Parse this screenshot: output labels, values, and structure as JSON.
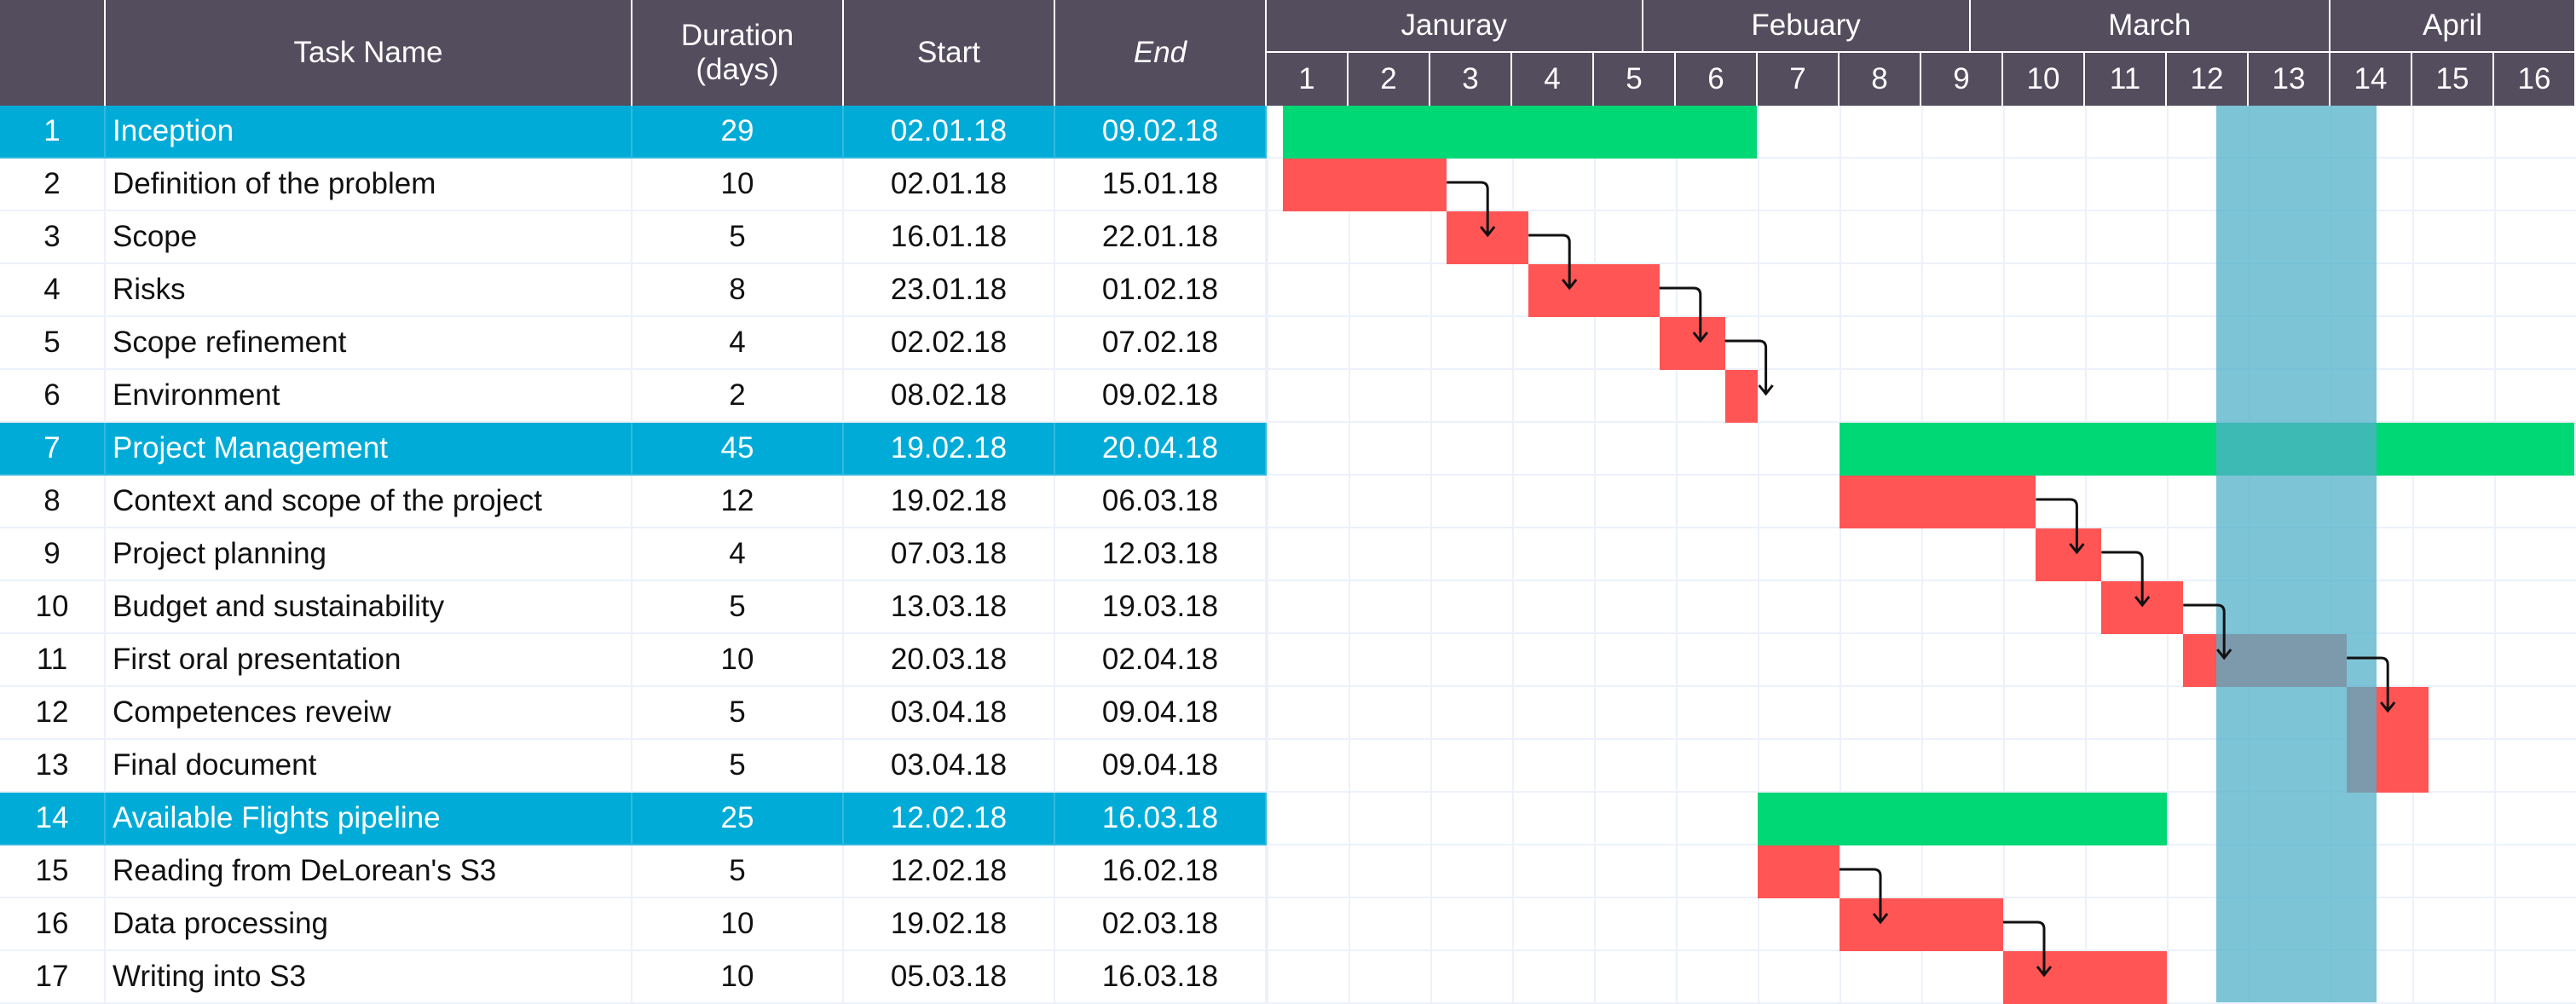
{
  "columns": {
    "id": "",
    "name": "Task Name",
    "duration": "Duration\n(days)",
    "start": "Start",
    "end": "End"
  },
  "months": [
    "Januray",
    "Febuary",
    "March",
    "April"
  ],
  "weeks": [
    "1",
    "2",
    "3",
    "4",
    "5",
    "6",
    "7",
    "8",
    "9",
    "10",
    "11",
    "12",
    "13",
    "14",
    "15",
    "16"
  ],
  "highlight_weeks": [
    "12",
    "13"
  ],
  "colors": {
    "header": "#544d5e",
    "group_row": "#00acd7",
    "summary_bar": "#00d775",
    "task_bar": "#ff5555",
    "highlight": "#52b0c9"
  },
  "tasks": [
    {
      "id": "1",
      "name": "Inception",
      "duration": "29",
      "start": "02.01.18",
      "end": "09.02.18",
      "group": true,
      "bar": [
        1.2,
        6.99
      ]
    },
    {
      "id": "2",
      "name": "Definition of the problem",
      "duration": "10",
      "start": "02.01.18",
      "end": "15.01.18",
      "group": false,
      "bar": [
        1.2,
        3.2
      ]
    },
    {
      "id": "3",
      "name": "Scope",
      "duration": "5",
      "start": "16.01.18",
      "end": "22.01.18",
      "group": false,
      "bar": [
        3.2,
        4.2
      ]
    },
    {
      "id": "4",
      "name": "Risks",
      "duration": "8",
      "start": "23.01.18",
      "end": "01.02.18",
      "group": false,
      "bar": [
        4.2,
        5.8
      ]
    },
    {
      "id": "5",
      "name": "Scope refinement",
      "duration": "4",
      "start": "02.02.18",
      "end": "07.02.18",
      "group": false,
      "bar": [
        5.8,
        6.6
      ]
    },
    {
      "id": "6",
      "name": "Environment",
      "duration": "2",
      "start": "08.02.18",
      "end": "09.02.18",
      "group": false,
      "bar": [
        6.6,
        7.0
      ]
    },
    {
      "id": "7",
      "name": "Project Management",
      "duration": "45",
      "start": "19.02.18",
      "end": "20.04.18",
      "group": true,
      "bar": [
        8.0,
        17.0
      ]
    },
    {
      "id": "8",
      "name": "Context and scope of the project",
      "duration": "12",
      "start": "19.02.18",
      "end": "06.03.18",
      "group": false,
      "bar": [
        8.0,
        10.4
      ]
    },
    {
      "id": "9",
      "name": "Project planning",
      "duration": "4",
      "start": "07.03.18",
      "end": "12.03.18",
      "group": false,
      "bar": [
        10.4,
        11.2
      ]
    },
    {
      "id": "10",
      "name": "Budget and sustainability",
      "duration": "5",
      "start": "13.03.18",
      "end": "19.03.18",
      "group": false,
      "bar": [
        11.2,
        12.2
      ]
    },
    {
      "id": "11",
      "name": "First oral presentation",
      "duration": "10",
      "start": "20.03.18",
      "end": "02.04.18",
      "group": false,
      "bar": [
        12.2,
        14.2
      ]
    },
    {
      "id": "12",
      "name": "Competences reveiw",
      "duration": "5",
      "start": "03.04.18",
      "end": "09.04.18",
      "group": false,
      "bar": [
        14.2,
        15.2
      ]
    },
    {
      "id": "13",
      "name": "Final document",
      "duration": "5",
      "start": "03.04.18",
      "end": "09.04.18",
      "group": false,
      "bar": [
        14.2,
        15.2
      ]
    },
    {
      "id": "14",
      "name": "Available Flights pipeline",
      "duration": "25",
      "start": "12.02.18",
      "end": "16.03.18",
      "group": true,
      "bar": [
        7.0,
        12.0
      ]
    },
    {
      "id": "15",
      "name": "Reading from DeLorean's S3",
      "duration": "5",
      "start": "12.02.18",
      "end": "16.02.18",
      "group": false,
      "bar": [
        7.0,
        8.0
      ]
    },
    {
      "id": "16",
      "name": "Data processing",
      "duration": "10",
      "start": "19.02.18",
      "end": "02.03.18",
      "group": false,
      "bar": [
        8.0,
        10.0
      ]
    },
    {
      "id": "17",
      "name": "Writing into S3",
      "duration": "10",
      "start": "05.03.18",
      "end": "16.03.18",
      "group": false,
      "bar": [
        10.0,
        12.0
      ]
    }
  ],
  "dependencies": [
    [
      2,
      3
    ],
    [
      3,
      4
    ],
    [
      4,
      5
    ],
    [
      5,
      6
    ],
    [
      8,
      9
    ],
    [
      9,
      10
    ],
    [
      10,
      11
    ],
    [
      11,
      12
    ],
    [
      15,
      16
    ],
    [
      16,
      17
    ]
  ]
}
